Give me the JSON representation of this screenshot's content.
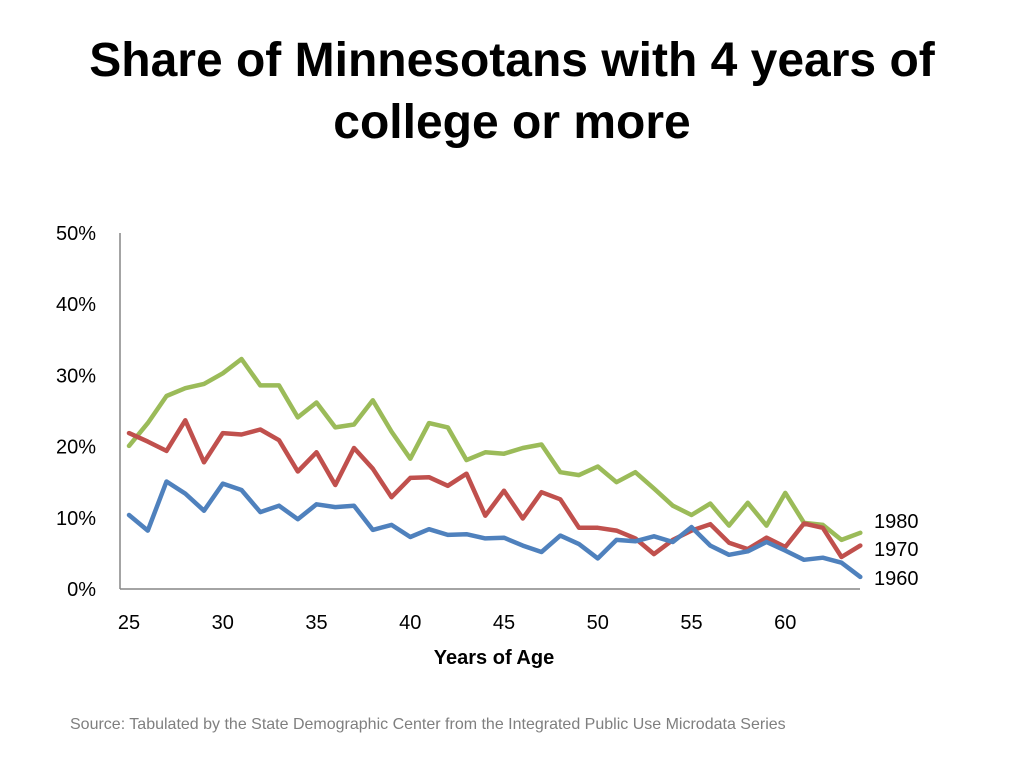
{
  "title": "Share of Minnesotans with 4 years of college or more",
  "source": "Source: Tabulated by the State Demographic Center from the Integrated Public Use Microdata Series",
  "colors": {
    "1960": "#4f81bd",
    "1970": "#c0504d",
    "1980": "#9bbb59",
    "axis": "#868686"
  },
  "chart_data": {
    "type": "line",
    "title": "Share of Minnesotans with 4 years of college or more",
    "xlabel": "Years of Age",
    "ylabel": "",
    "xlim": [
      25,
      64
    ],
    "ylim": [
      0,
      50
    ],
    "x_ticks": [
      25,
      30,
      35,
      40,
      45,
      50,
      55,
      60
    ],
    "y_ticks": [
      0,
      10,
      20,
      30,
      40,
      50
    ],
    "y_tick_labels": [
      "0%",
      "10%",
      "20%",
      "30%",
      "40%",
      "50%"
    ],
    "grid": false,
    "legend": "end-of-line labels",
    "x": [
      25,
      26,
      27,
      28,
      29,
      30,
      31,
      32,
      33,
      34,
      35,
      36,
      37,
      38,
      39,
      40,
      41,
      42,
      43,
      44,
      45,
      46,
      47,
      48,
      49,
      50,
      51,
      52,
      53,
      54,
      55,
      56,
      57,
      58,
      59,
      60,
      61,
      62,
      63,
      64
    ],
    "series": [
      {
        "name": "1980",
        "color": "#9bbb59",
        "values": [
          20.1,
          23.3,
          27.1,
          28.2,
          28.8,
          30.3,
          32.3,
          28.6,
          28.6,
          24.1,
          26.2,
          22.7,
          23.1,
          26.5,
          22.1,
          18.3,
          23.3,
          22.7,
          18.1,
          19.2,
          19.0,
          19.8,
          20.3,
          16.4,
          16.0,
          17.2,
          15.0,
          16.4,
          14.1,
          11.7,
          10.4,
          12.0,
          8.9,
          12.1,
          8.9,
          13.5,
          9.3,
          9.0,
          6.9,
          7.9
        ]
      },
      {
        "name": "1970",
        "color": "#c0504d",
        "values": [
          21.9,
          20.7,
          19.4,
          23.7,
          17.8,
          21.9,
          21.7,
          22.4,
          20.9,
          16.5,
          19.2,
          14.6,
          19.8,
          16.9,
          12.9,
          15.6,
          15.7,
          14.5,
          16.2,
          10.3,
          13.8,
          9.9,
          13.6,
          12.6,
          8.6,
          8.6,
          8.2,
          7.1,
          4.9,
          6.9,
          8.2,
          9.1,
          6.5,
          5.6,
          7.2,
          5.9,
          9.2,
          8.6,
          4.5,
          6.1
        ]
      },
      {
        "name": "1960",
        "color": "#4f81bd",
        "values": [
          10.4,
          8.2,
          15.1,
          13.4,
          11.0,
          14.8,
          13.9,
          10.8,
          11.7,
          9.8,
          11.9,
          11.5,
          11.7,
          8.3,
          9.0,
          7.3,
          8.4,
          7.6,
          7.7,
          7.1,
          7.2,
          6.1,
          5.2,
          7.5,
          6.3,
          4.3,
          6.9,
          6.7,
          7.4,
          6.6,
          8.7,
          6.1,
          4.8,
          5.3,
          6.6,
          5.4,
          4.1,
          4.4,
          3.7,
          1.7
        ]
      }
    ]
  }
}
